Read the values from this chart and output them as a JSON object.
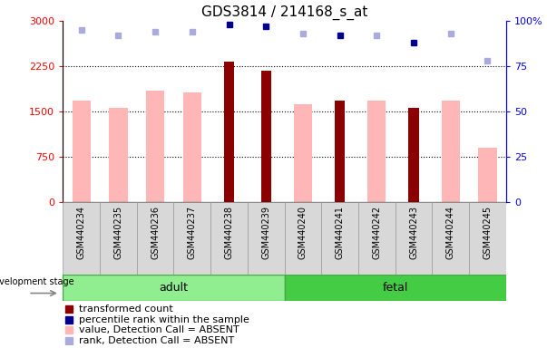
{
  "title": "GDS3814 / 214168_s_at",
  "samples": [
    "GSM440234",
    "GSM440235",
    "GSM440236",
    "GSM440237",
    "GSM440238",
    "GSM440239",
    "GSM440240",
    "GSM440241",
    "GSM440242",
    "GSM440243",
    "GSM440244",
    "GSM440245"
  ],
  "transformed_count": [
    null,
    null,
    null,
    null,
    2320,
    2170,
    null,
    1680,
    null,
    1560,
    null,
    null
  ],
  "value_absent": [
    1680,
    1560,
    1840,
    1820,
    null,
    null,
    1620,
    null,
    1680,
    null,
    1680,
    900
  ],
  "percentile_rank": [
    null,
    null,
    null,
    null,
    98,
    97,
    null,
    92,
    null,
    88,
    null,
    null
  ],
  "rank_absent": [
    95,
    92,
    94,
    94,
    null,
    null,
    93,
    null,
    92,
    null,
    93,
    78
  ],
  "ylim_left": [
    0,
    3000
  ],
  "ylim_right": [
    0,
    100
  ],
  "yticks_left": [
    0,
    750,
    1500,
    2250,
    3000
  ],
  "yticks_right": [
    0,
    25,
    50,
    75,
    100
  ],
  "ytick_labels_left": [
    "0",
    "750",
    "1500",
    "2250",
    "3000"
  ],
  "ytick_labels_right": [
    "0",
    "25",
    "50",
    "75",
    "100%"
  ],
  "color_dark_red": "#8B0000",
  "color_dark_blue": "#00008B",
  "color_pink": "#FFB6B6",
  "color_light_blue": "#AAAADD",
  "color_light_green": "#90EE90",
  "color_medium_green": "#44CC44",
  "color_grey_bg": "#D8D8D8",
  "adult_label": "adult",
  "fetal_label": "fetal",
  "dev_stage_label": "development stage"
}
